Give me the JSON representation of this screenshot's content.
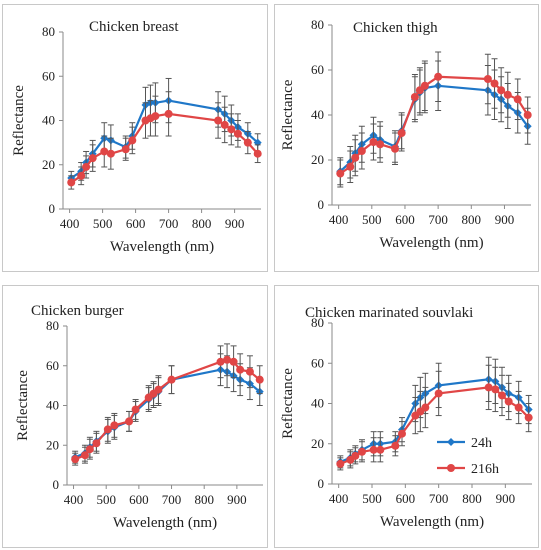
{
  "chart_data": [
    {
      "type": "line",
      "title": "Chicken breast",
      "xlabel": "Wavelength (nm)",
      "ylabel": "Reflectance",
      "xlim": [
        380,
        980
      ],
      "ylim": [
        0,
        80
      ],
      "xticks": [
        400,
        500,
        600,
        700,
        800,
        900
      ],
      "yticks": [
        0,
        20,
        40,
        60,
        80
      ],
      "x": [
        405,
        435,
        450,
        470,
        505,
        525,
        570,
        590,
        630,
        645,
        660,
        700,
        850,
        870,
        890,
        910,
        940,
        970
      ],
      "series": [
        {
          "name": "24h",
          "color": "#1f77c8",
          "marker": "diamond",
          "values": [
            14,
            17,
            21,
            25,
            32,
            31,
            28,
            33,
            47,
            48,
            48,
            49,
            45,
            43,
            40,
            37,
            34,
            30
          ],
          "errors": [
            3,
            4,
            5,
            6,
            7,
            7,
            5,
            6,
            8,
            8,
            9,
            10,
            8,
            8,
            7,
            6,
            5,
            4
          ]
        },
        {
          "name": "216h",
          "color": "#e04646",
          "marker": "circle",
          "values": [
            12,
            15,
            19,
            23,
            26,
            25,
            27,
            31,
            40,
            41,
            42,
            43,
            40,
            38,
            36,
            34,
            30,
            25
          ],
          "errors": [
            3,
            4,
            5,
            6,
            7,
            7,
            5,
            6,
            8,
            8,
            9,
            10,
            8,
            8,
            7,
            6,
            5,
            4
          ]
        }
      ]
    },
    {
      "type": "line",
      "title": "Chicken thigh",
      "xlabel": "Wavelength (nm)",
      "ylabel": "Reflectance",
      "xlim": [
        380,
        980
      ],
      "ylim": [
        0,
        80
      ],
      "xticks": [
        400,
        500,
        600,
        700,
        800,
        900
      ],
      "yticks": [
        0,
        20,
        40,
        60,
        80
      ],
      "x": [
        405,
        435,
        450,
        470,
        505,
        525,
        570,
        590,
        630,
        645,
        660,
        700,
        850,
        870,
        890,
        910,
        940,
        970
      ],
      "series": [
        {
          "name": "24h",
          "color": "#1f77c8",
          "marker": "diamond",
          "values": [
            15,
            19,
            23,
            27,
            31,
            29,
            26,
            33,
            47,
            50,
            52,
            53,
            51,
            49,
            47,
            44,
            41,
            35
          ],
          "errors": [
            6,
            7,
            8,
            8,
            8,
            8,
            7,
            8,
            10,
            10,
            11,
            11,
            11,
            11,
            10,
            10,
            9,
            8
          ]
        },
        {
          "name": "216h",
          "color": "#e04646",
          "marker": "circle",
          "values": [
            14,
            17,
            21,
            24,
            28,
            27,
            25,
            32,
            48,
            51,
            53,
            57,
            56,
            54,
            51,
            49,
            47,
            40
          ],
          "errors": [
            6,
            7,
            8,
            8,
            8,
            8,
            7,
            8,
            10,
            10,
            11,
            11,
            11,
            11,
            10,
            10,
            9,
            8
          ]
        }
      ]
    },
    {
      "type": "line",
      "title": "Chicken burger",
      "xlabel": "Wavelength (nm)",
      "ylabel": "Reflectance",
      "xlim": [
        380,
        980
      ],
      "ylim": [
        0,
        80
      ],
      "xticks": [
        400,
        500,
        600,
        700,
        800,
        900
      ],
      "yticks": [
        0,
        20,
        40,
        60,
        80
      ],
      "x": [
        405,
        435,
        450,
        470,
        505,
        525,
        570,
        590,
        630,
        645,
        660,
        700,
        850,
        870,
        890,
        910,
        940,
        970
      ],
      "series": [
        {
          "name": "24h",
          "color": "#1f77c8",
          "marker": "diamond",
          "values": [
            14,
            16,
            19,
            22,
            27,
            29,
            32,
            37,
            43,
            45,
            47,
            53,
            58,
            57,
            55,
            53,
            51,
            47
          ],
          "errors": [
            3,
            4,
            5,
            5,
            6,
            6,
            5,
            5,
            6,
            6,
            7,
            7,
            8,
            8,
            8,
            8,
            8,
            7
          ]
        },
        {
          "name": "216h",
          "color": "#e04646",
          "marker": "circle",
          "values": [
            13,
            15,
            18,
            21,
            28,
            30,
            32,
            38,
            44,
            46,
            48,
            53,
            62,
            63,
            62,
            58,
            57,
            53
          ],
          "errors": [
            3,
            4,
            5,
            5,
            6,
            6,
            5,
            5,
            6,
            6,
            7,
            7,
            8,
            8,
            8,
            8,
            8,
            7
          ]
        }
      ]
    },
    {
      "type": "line",
      "title": "Chicken marinated souvlaki",
      "xlabel": "Wavelength (nm)",
      "ylabel": "Reflectance",
      "xlim": [
        380,
        980
      ],
      "ylim": [
        0,
        80
      ],
      "xticks": [
        400,
        500,
        600,
        700,
        800,
        900
      ],
      "yticks": [
        0,
        20,
        40,
        60,
        80
      ],
      "legend_position": "bottom-right",
      "x": [
        405,
        435,
        450,
        470,
        505,
        525,
        570,
        590,
        630,
        645,
        660,
        700,
        850,
        870,
        890,
        910,
        940,
        970
      ],
      "series": [
        {
          "name": "24h",
          "color": "#1f77c8",
          "marker": "diamond",
          "values": [
            11,
            13,
            15,
            17,
            20,
            20,
            21,
            27,
            40,
            43,
            45,
            49,
            52,
            51,
            48,
            45,
            43,
            37
          ],
          "errors": [
            3,
            4,
            4,
            5,
            6,
            6,
            5,
            6,
            9,
            10,
            10,
            11,
            11,
            11,
            10,
            9,
            8,
            7
          ]
        },
        {
          "name": "216h",
          "color": "#e04646",
          "marker": "circle",
          "values": [
            10,
            12,
            14,
            16,
            17,
            17,
            19,
            25,
            34,
            36,
            38,
            45,
            48,
            47,
            44,
            41,
            38,
            33
          ],
          "errors": [
            3,
            4,
            4,
            5,
            6,
            6,
            5,
            6,
            9,
            10,
            10,
            11,
            11,
            11,
            10,
            9,
            8,
            7
          ]
        }
      ]
    }
  ]
}
